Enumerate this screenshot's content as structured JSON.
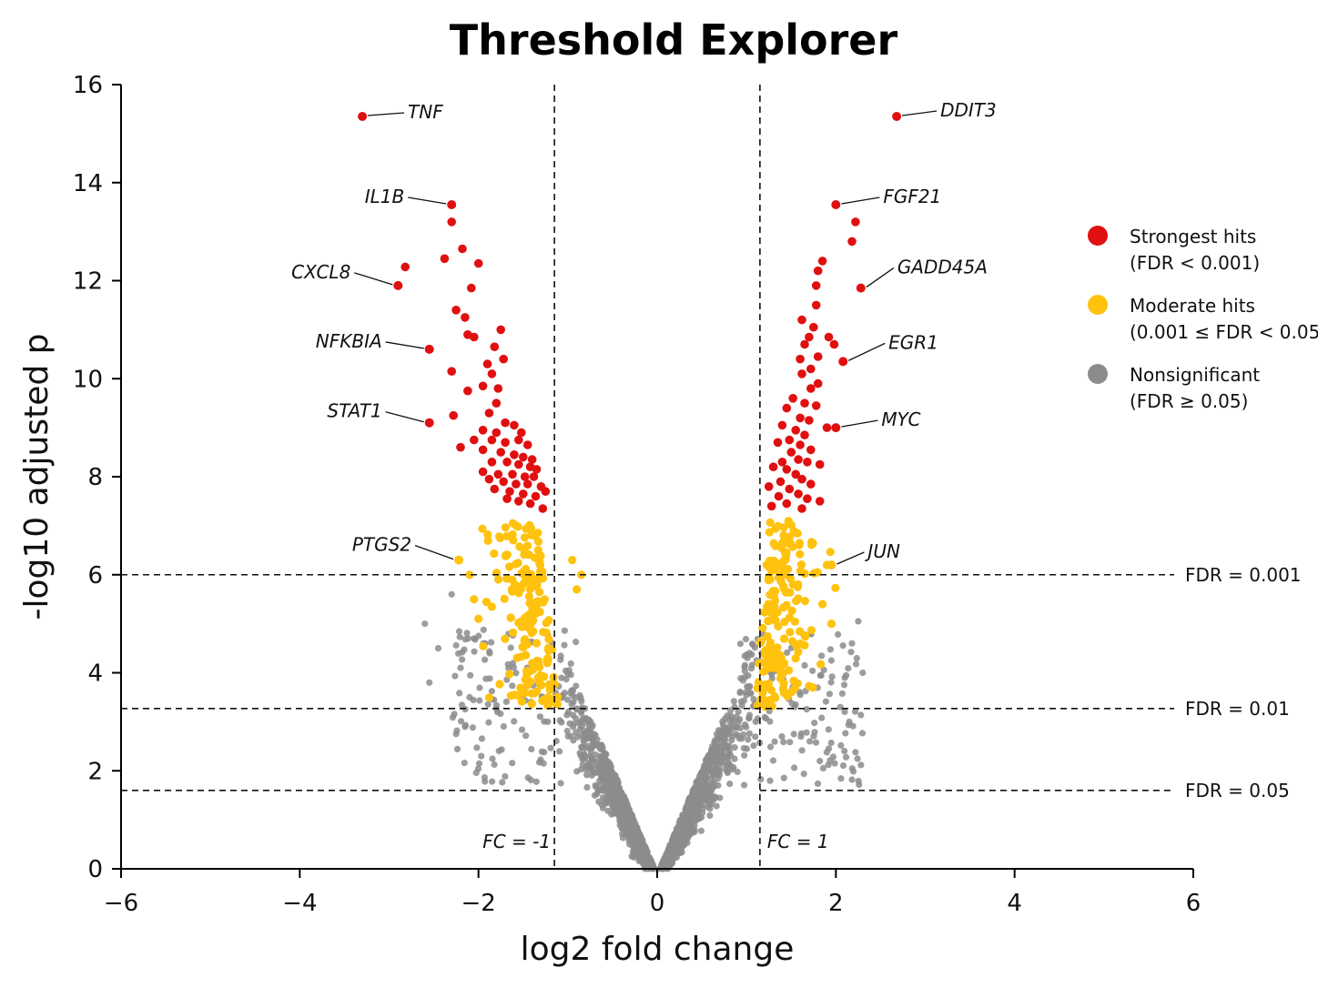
{
  "chart_data": {
    "type": "scatter",
    "title": "Threshold Explorer",
    "xlabel": "log2 fold change",
    "ylabel": "-log10 adjusted p",
    "xlim": [
      -6,
      6
    ],
    "ylim": [
      0,
      16
    ],
    "x_ticks": [
      -6,
      -4,
      -2,
      0,
      2,
      4,
      6
    ],
    "x_tick_labels": [
      "−6",
      "−4",
      "−2",
      "0",
      "2",
      "4",
      "6"
    ],
    "y_ticks": [
      0,
      2,
      4,
      6,
      8,
      10,
      12,
      14,
      16
    ],
    "y_tick_labels": [
      "0",
      "2",
      "4",
      "6",
      "8",
      "10",
      "12",
      "14",
      "16"
    ],
    "grid": false,
    "legend_position": "right",
    "colors": {
      "strong": "#e01010",
      "moderate": "#ffc20e",
      "nonsig": "#8c8c8c"
    },
    "legend": [
      {
        "key": "strong",
        "line1": "Strongest hits",
        "line2": "(FDR < 0.001)"
      },
      {
        "key": "moderate",
        "line1": "Moderate hits",
        "line2": "(0.001 ≤ FDR < 0.05)"
      },
      {
        "key": "nonsig",
        "line1": "Nonsignificant",
        "line2": "(FDR ≥ 0.05)"
      }
    ],
    "fdr_thresholds": [
      {
        "label": "FDR = 0.001",
        "y": 6.0
      },
      {
        "label": "FDR = 0.01",
        "y": 3.27
      },
      {
        "label": "FDR = 0.05",
        "y": 1.6
      }
    ],
    "fc_thresholds": [
      {
        "label": "FC = -1",
        "x": -1.15
      },
      {
        "label": "FC = 1",
        "x": 1.15
      }
    ],
    "labeled_genes": [
      {
        "gene": "TNF",
        "x": -3.3,
        "y": 15.35
      },
      {
        "gene": "IL1B",
        "x": -2.3,
        "y": 13.55
      },
      {
        "gene": "CXCL8",
        "x": -2.9,
        "y": 11.9
      },
      {
        "gene": "NFKBIA",
        "x": -2.55,
        "y": 10.6
      },
      {
        "gene": "STAT1",
        "x": -2.55,
        "y": 9.1
      },
      {
        "gene": "PTGS2",
        "x": -2.22,
        "y": 6.3
      },
      {
        "gene": "DDIT3",
        "x": 2.68,
        "y": 15.35
      },
      {
        "gene": "FGF21",
        "x": 2.0,
        "y": 13.55
      },
      {
        "gene": "GADD45A",
        "x": 2.28,
        "y": 11.85
      },
      {
        "gene": "EGR1",
        "x": 2.08,
        "y": 10.35
      },
      {
        "gene": "MYC",
        "x": 2.0,
        "y": 9.0
      },
      {
        "gene": "JUN",
        "x": 1.95,
        "y": 6.2
      }
    ],
    "points_strong": [
      [
        -2.3,
        13.2
      ],
      [
        -2.18,
        12.65
      ],
      [
        -2.38,
        12.45
      ],
      [
        -2.0,
        12.35
      ],
      [
        -2.82,
        12.28
      ],
      [
        -2.08,
        11.85
      ],
      [
        -2.25,
        11.4
      ],
      [
        -2.15,
        11.25
      ],
      [
        -2.12,
        10.9
      ],
      [
        -2.05,
        10.85
      ],
      [
        -1.75,
        11.0
      ],
      [
        -1.82,
        10.65
      ],
      [
        -1.9,
        10.3
      ],
      [
        -1.72,
        10.4
      ],
      [
        -2.3,
        10.15
      ],
      [
        -1.85,
        10.1
      ],
      [
        -1.95,
        9.85
      ],
      [
        -1.78,
        9.8
      ],
      [
        -2.12,
        9.75
      ],
      [
        -1.8,
        9.5
      ],
      [
        -2.28,
        9.25
      ],
      [
        -1.88,
        9.3
      ],
      [
        -1.7,
        9.1
      ],
      [
        -1.95,
        8.95
      ],
      [
        -1.8,
        8.9
      ],
      [
        -1.6,
        9.05
      ],
      [
        -1.52,
        8.9
      ],
      [
        -2.05,
        8.75
      ],
      [
        -1.85,
        8.75
      ],
      [
        -1.7,
        8.7
      ],
      [
        -1.55,
        8.75
      ],
      [
        -1.45,
        8.65
      ],
      [
        -2.2,
        8.6
      ],
      [
        -1.95,
        8.55
      ],
      [
        -1.75,
        8.5
      ],
      [
        -1.6,
        8.45
      ],
      [
        -1.5,
        8.4
      ],
      [
        -1.4,
        8.35
      ],
      [
        -1.85,
        8.3
      ],
      [
        -1.68,
        8.3
      ],
      [
        -1.55,
        8.25
      ],
      [
        -1.42,
        8.2
      ],
      [
        -1.35,
        8.15
      ],
      [
        -1.95,
        8.1
      ],
      [
        -1.78,
        8.05
      ],
      [
        -1.62,
        8.05
      ],
      [
        -1.48,
        8.0
      ],
      [
        -1.38,
        8.0
      ],
      [
        -1.88,
        7.95
      ],
      [
        -1.72,
        7.9
      ],
      [
        -1.58,
        7.85
      ],
      [
        -1.45,
        7.85
      ],
      [
        -1.3,
        7.8
      ],
      [
        -1.82,
        7.75
      ],
      [
        -1.65,
        7.7
      ],
      [
        -1.5,
        7.65
      ],
      [
        -1.36,
        7.6
      ],
      [
        -1.25,
        7.7
      ],
      [
        -1.55,
        7.5
      ],
      [
        -1.42,
        7.45
      ],
      [
        -1.28,
        7.35
      ],
      [
        -1.68,
        7.55
      ],
      [
        2.22,
        13.2
      ],
      [
        2.18,
        12.8
      ],
      [
        1.85,
        12.4
      ],
      [
        1.8,
        12.2
      ],
      [
        1.78,
        11.9
      ],
      [
        1.78,
        11.5
      ],
      [
        1.62,
        11.2
      ],
      [
        1.75,
        11.05
      ],
      [
        1.7,
        10.85
      ],
      [
        1.92,
        10.85
      ],
      [
        1.65,
        10.7
      ],
      [
        1.98,
        10.7
      ],
      [
        1.8,
        10.45
      ],
      [
        1.6,
        10.4
      ],
      [
        1.72,
        10.2
      ],
      [
        1.62,
        10.1
      ],
      [
        1.8,
        9.9
      ],
      [
        1.72,
        9.8
      ],
      [
        1.52,
        9.6
      ],
      [
        1.65,
        9.5
      ],
      [
        1.78,
        9.45
      ],
      [
        1.45,
        9.4
      ],
      [
        1.6,
        9.2
      ],
      [
        1.7,
        9.15
      ],
      [
        1.9,
        9.0
      ],
      [
        1.4,
        9.05
      ],
      [
        1.55,
        8.95
      ],
      [
        1.65,
        8.85
      ],
      [
        1.48,
        8.75
      ],
      [
        1.6,
        8.65
      ],
      [
        1.35,
        8.7
      ],
      [
        1.72,
        8.55
      ],
      [
        1.5,
        8.5
      ],
      [
        1.58,
        8.35
      ],
      [
        1.4,
        8.3
      ],
      [
        1.68,
        8.3
      ],
      [
        1.82,
        8.25
      ],
      [
        1.3,
        8.2
      ],
      [
        1.45,
        8.15
      ],
      [
        1.55,
        8.05
      ],
      [
        1.62,
        7.95
      ],
      [
        1.38,
        7.9
      ],
      [
        1.72,
        7.85
      ],
      [
        1.25,
        7.8
      ],
      [
        1.48,
        7.75
      ],
      [
        1.58,
        7.65
      ],
      [
        1.36,
        7.6
      ],
      [
        1.68,
        7.55
      ],
      [
        1.82,
        7.5
      ],
      [
        1.45,
        7.45
      ],
      [
        1.28,
        7.4
      ],
      [
        1.62,
        7.35
      ]
    ]
  }
}
